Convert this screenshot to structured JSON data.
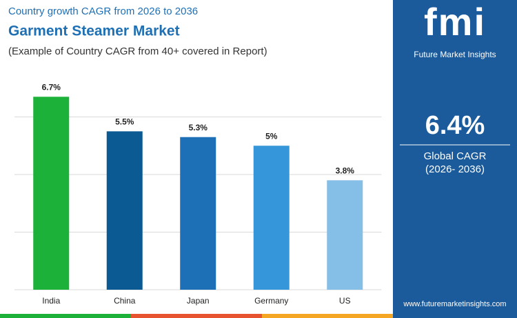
{
  "chart_data": {
    "type": "bar",
    "kicker": "Country growth CAGR from 2026 to 2036",
    "title": "Garment Steamer Market",
    "subtitle": "(Example of Country CAGR from 40+ covered in Report)",
    "categories": [
      "India",
      "China",
      "Japan",
      "Germany",
      "US"
    ],
    "values": [
      6.7,
      5.5,
      5.3,
      5,
      3.8
    ],
    "value_labels": [
      "6.7%",
      "5.5%",
      "5.3%",
      "5%",
      "3.8%"
    ],
    "colors": [
      "#1cb23a",
      "#0b5a94",
      "#1d70b5",
      "#3597d9",
      "#85bee6"
    ],
    "ylim": [
      0,
      8
    ],
    "yticks": [
      0,
      2,
      4,
      6
    ],
    "grid": true
  },
  "panel": {
    "logo": "fmi",
    "brand": "Future Market Insights",
    "headline": "6.4%",
    "caption": "Global CAGR",
    "period": "(2026- 2036)",
    "url": "www.futuremarketinsights.com"
  }
}
